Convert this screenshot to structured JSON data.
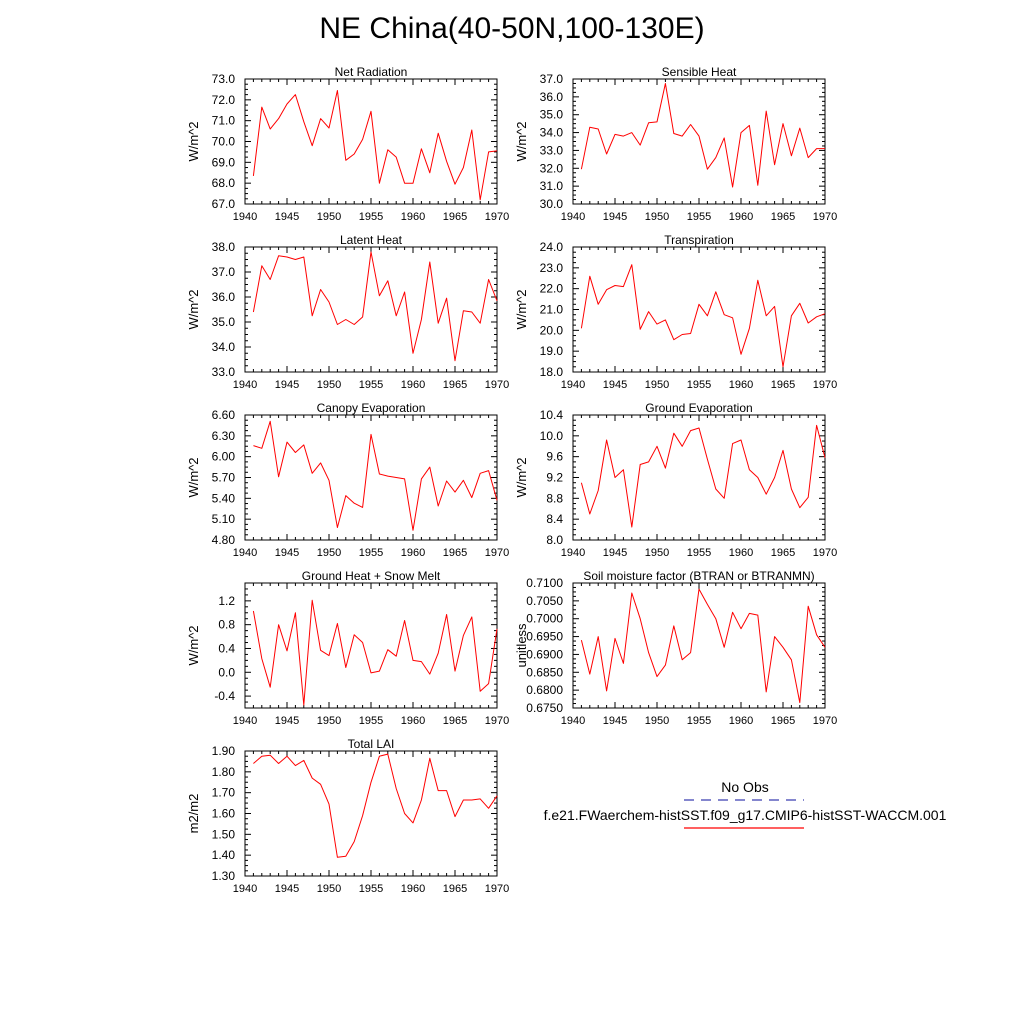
{
  "title": "NE China(40-50N,100-130E)",
  "legend": {
    "obs_label": "No Obs",
    "obs_color": "#3b3fb0",
    "model_label": "f.e21.FWaerchem-histSST.f09_g17.CMIP6-histSST-WACCM.001",
    "model_color": "#ff0000"
  },
  "chart_data": [
    {
      "type": "line",
      "title": "Net Radiation",
      "ylabel": "W/m^2",
      "xlim": [
        1940,
        1970
      ],
      "ylim": [
        67.0,
        73.0
      ],
      "xticks": [
        "1940",
        "1945",
        "1950",
        "1955",
        "1960",
        "1965",
        "1970"
      ],
      "yticks": [
        "67.0",
        "68.0",
        "69.0",
        "70.0",
        "71.0",
        "72.0",
        "73.0"
      ],
      "x": [
        1941,
        1942,
        1943,
        1944,
        1945,
        1946,
        1947,
        1948,
        1949,
        1950,
        1951,
        1952,
        1953,
        1954,
        1955,
        1956,
        1957,
        1958,
        1959,
        1960,
        1961,
        1962,
        1963,
        1964,
        1965,
        1966,
        1967,
        1968,
        1969,
        1970
      ],
      "series": [
        {
          "values": [
            68.35,
            71.65,
            70.6,
            71.1,
            71.8,
            72.25,
            70.95,
            69.8,
            71.1,
            70.65,
            72.45,
            69.1,
            69.4,
            70.1,
            71.45,
            68.0,
            69.6,
            69.25,
            68.0,
            68.0,
            69.65,
            68.5,
            70.4,
            69.05,
            67.95,
            68.75,
            70.55,
            67.2,
            69.5,
            69.55
          ]
        }
      ]
    },
    {
      "type": "line",
      "title": "Sensible Heat",
      "ylabel": "W/m^2",
      "xlim": [
        1940,
        1970
      ],
      "ylim": [
        30.0,
        37.0
      ],
      "xticks": [
        "1940",
        "1945",
        "1950",
        "1955",
        "1960",
        "1965",
        "1970"
      ],
      "yticks": [
        "30.0",
        "31.0",
        "32.0",
        "33.0",
        "34.0",
        "35.0",
        "36.0",
        "37.0"
      ],
      "x": [
        1941,
        1942,
        1943,
        1944,
        1945,
        1946,
        1947,
        1948,
        1949,
        1950,
        1951,
        1952,
        1953,
        1954,
        1955,
        1956,
        1957,
        1958,
        1959,
        1960,
        1961,
        1962,
        1963,
        1964,
        1965,
        1966,
        1967,
        1968,
        1969,
        1970
      ],
      "series": [
        {
          "values": [
            31.95,
            34.3,
            34.2,
            32.8,
            33.9,
            33.8,
            34.0,
            33.3,
            34.55,
            34.6,
            36.75,
            33.95,
            33.8,
            34.45,
            33.8,
            31.95,
            32.6,
            33.7,
            30.95,
            34.0,
            34.4,
            31.05,
            35.2,
            32.2,
            34.5,
            32.7,
            34.25,
            32.6,
            33.1,
            33.1
          ]
        }
      ]
    },
    {
      "type": "line",
      "title": "Latent Heat",
      "ylabel": "W/m^2",
      "xlim": [
        1940,
        1970
      ],
      "ylim": [
        33.0,
        38.0
      ],
      "xticks": [
        "1940",
        "1945",
        "1950",
        "1955",
        "1960",
        "1965",
        "1970"
      ],
      "yticks": [
        "33.0",
        "34.0",
        "35.0",
        "36.0",
        "37.0",
        "38.0"
      ],
      "x": [
        1941,
        1942,
        1943,
        1944,
        1945,
        1946,
        1947,
        1948,
        1949,
        1950,
        1951,
        1952,
        1953,
        1954,
        1955,
        1956,
        1957,
        1958,
        1959,
        1960,
        1961,
        1962,
        1963,
        1964,
        1965,
        1966,
        1967,
        1968,
        1969,
        1970
      ],
      "series": [
        {
          "values": [
            35.4,
            37.25,
            36.7,
            37.65,
            37.6,
            37.5,
            37.6,
            35.25,
            36.3,
            35.8,
            34.9,
            35.1,
            34.9,
            35.2,
            37.8,
            36.05,
            36.65,
            35.25,
            36.2,
            33.75,
            35.1,
            37.4,
            34.95,
            35.95,
            33.45,
            35.45,
            35.4,
            34.95,
            36.7,
            35.85
          ]
        }
      ]
    },
    {
      "type": "line",
      "title": "Transpiration",
      "ylabel": "W/m^2",
      "xlim": [
        1940,
        1970
      ],
      "ylim": [
        18.0,
        24.0
      ],
      "xticks": [
        "1940",
        "1945",
        "1950",
        "1955",
        "1960",
        "1965",
        "1970"
      ],
      "yticks": [
        "18.0",
        "19.0",
        "20.0",
        "21.0",
        "22.0",
        "23.0",
        "24.0"
      ],
      "x": [
        1941,
        1942,
        1943,
        1944,
        1945,
        1946,
        1947,
        1948,
        1949,
        1950,
        1951,
        1952,
        1953,
        1954,
        1955,
        1956,
        1957,
        1958,
        1959,
        1960,
        1961,
        1962,
        1963,
        1964,
        1965,
        1966,
        1967,
        1968,
        1969,
        1970
      ],
      "series": [
        {
          "values": [
            20.1,
            22.6,
            21.25,
            21.95,
            22.15,
            22.1,
            23.15,
            20.05,
            20.9,
            20.3,
            20.5,
            19.55,
            19.8,
            19.85,
            21.25,
            20.7,
            21.85,
            20.75,
            20.6,
            18.85,
            20.1,
            22.4,
            20.7,
            21.15,
            18.25,
            20.7,
            21.3,
            20.35,
            20.65,
            20.8
          ]
        }
      ]
    },
    {
      "type": "line",
      "title": "Canopy Evaporation",
      "ylabel": "W/m^2",
      "xlim": [
        1940,
        1970
      ],
      "ylim": [
        4.8,
        6.6
      ],
      "xticks": [
        "1940",
        "1945",
        "1950",
        "1955",
        "1960",
        "1965",
        "1970"
      ],
      "yticks": [
        "4.80",
        "5.10",
        "5.40",
        "5.70",
        "6.00",
        "6.30",
        "6.60"
      ],
      "x": [
        1941,
        1942,
        1943,
        1944,
        1945,
        1946,
        1947,
        1948,
        1949,
        1950,
        1951,
        1952,
        1953,
        1954,
        1955,
        1956,
        1957,
        1958,
        1959,
        1960,
        1961,
        1962,
        1963,
        1964,
        1965,
        1966,
        1967,
        1968,
        1969,
        1970
      ],
      "series": [
        {
          "values": [
            6.16,
            6.12,
            6.51,
            5.71,
            6.21,
            6.06,
            6.17,
            5.76,
            5.91,
            5.66,
            4.98,
            5.44,
            5.33,
            5.27,
            6.32,
            5.75,
            5.72,
            5.7,
            5.68,
            4.94,
            5.68,
            5.85,
            5.29,
            5.65,
            5.49,
            5.66,
            5.41,
            5.76,
            5.8,
            5.37
          ]
        }
      ]
    },
    {
      "type": "line",
      "title": "Ground Evaporation",
      "ylabel": "W/m^2",
      "xlim": [
        1940,
        1970
      ],
      "ylim": [
        8.0,
        10.4
      ],
      "xticks": [
        "1940",
        "1945",
        "1950",
        "1955",
        "1960",
        "1965",
        "1970"
      ],
      "yticks": [
        "8.0",
        "8.4",
        "8.8",
        "9.2",
        "9.6",
        "10.0",
        "10.4"
      ],
      "x": [
        1941,
        1942,
        1943,
        1944,
        1945,
        1946,
        1947,
        1948,
        1949,
        1950,
        1951,
        1952,
        1953,
        1954,
        1955,
        1956,
        1957,
        1958,
        1959,
        1960,
        1961,
        1962,
        1963,
        1964,
        1965,
        1966,
        1967,
        1968,
        1969,
        1970
      ],
      "series": [
        {
          "values": [
            9.1,
            8.5,
            8.95,
            9.92,
            9.2,
            9.35,
            8.25,
            9.45,
            9.5,
            9.8,
            9.38,
            10.05,
            9.8,
            10.1,
            10.15,
            9.55,
            8.98,
            8.8,
            9.85,
            9.92,
            9.35,
            9.2,
            8.88,
            9.2,
            9.72,
            8.98,
            8.62,
            8.82,
            10.2,
            9.58
          ]
        }
      ]
    },
    {
      "type": "line",
      "title": "Ground Heat + Snow Melt",
      "ylabel": "W/m^2",
      "xlim": [
        1940,
        1970
      ],
      "ylim": [
        -0.6,
        1.5
      ],
      "xticks": [
        "1940",
        "1945",
        "1950",
        "1955",
        "1960",
        "1965",
        "1970"
      ],
      "yticks": [
        "-0.4",
        "0.0",
        "0.4",
        "0.8",
        "1.2"
      ],
      "ytick_values": [
        -0.4,
        0.0,
        0.4,
        0.8,
        1.2
      ],
      "x": [
        1941,
        1942,
        1943,
        1944,
        1945,
        1946,
        1947,
        1948,
        1949,
        1950,
        1951,
        1952,
        1953,
        1954,
        1955,
        1956,
        1957,
        1958,
        1959,
        1960,
        1961,
        1962,
        1963,
        1964,
        1965,
        1966,
        1967,
        1968,
        1969,
        1970
      ],
      "series": [
        {
          "values": [
            1.03,
            0.23,
            -0.25,
            0.8,
            0.36,
            1.0,
            -0.55,
            1.21,
            0.37,
            0.28,
            0.82,
            0.08,
            0.63,
            0.5,
            -0.01,
            0.02,
            0.38,
            0.27,
            0.87,
            0.2,
            0.18,
            -0.03,
            0.32,
            0.97,
            0.02,
            0.62,
            0.93,
            -0.32,
            -0.19,
            0.73
          ]
        }
      ]
    },
    {
      "type": "line",
      "title": "Soil moisture factor (BTRAN or BTRANMN)",
      "ylabel": "unitless",
      "xlim": [
        1940,
        1970
      ],
      "ylim": [
        0.675,
        0.71
      ],
      "xticks": [
        "1940",
        "1945",
        "1950",
        "1955",
        "1960",
        "1965",
        "1970"
      ],
      "yticks": [
        "0.6750",
        "0.6800",
        "0.6850",
        "0.6900",
        "0.6950",
        "0.7000",
        "0.7050",
        "0.7100"
      ],
      "x": [
        1941,
        1942,
        1943,
        1944,
        1945,
        1946,
        1947,
        1948,
        1949,
        1950,
        1951,
        1952,
        1953,
        1954,
        1955,
        1956,
        1957,
        1958,
        1959,
        1960,
        1961,
        1962,
        1963,
        1964,
        1965,
        1966,
        1967,
        1968,
        1969,
        1970
      ],
      "series": [
        {
          "values": [
            0.694,
            0.6845,
            0.695,
            0.6798,
            0.6945,
            0.6875,
            0.7072,
            0.7,
            0.6905,
            0.6838,
            0.687,
            0.698,
            0.6885,
            0.6905,
            0.7083,
            0.704,
            0.7,
            0.692,
            0.7018,
            0.6972,
            0.7015,
            0.701,
            0.6795,
            0.695,
            0.692,
            0.6885,
            0.6765,
            0.7035,
            0.6955,
            0.692
          ]
        }
      ]
    },
    {
      "type": "line",
      "title": "Total LAI",
      "ylabel": "m2/m2",
      "xlim": [
        1940,
        1970
      ],
      "ylim": [
        1.3,
        1.9
      ],
      "xticks": [
        "1940",
        "1945",
        "1950",
        "1955",
        "1960",
        "1965",
        "1970"
      ],
      "yticks": [
        "1.30",
        "1.40",
        "1.50",
        "1.60",
        "1.70",
        "1.80",
        "1.90"
      ],
      "x": [
        1941,
        1942,
        1943,
        1944,
        1945,
        1946,
        1947,
        1948,
        1949,
        1950,
        1951,
        1952,
        1953,
        1954,
        1955,
        1956,
        1957,
        1958,
        1959,
        1960,
        1961,
        1962,
        1963,
        1964,
        1965,
        1966,
        1967,
        1968,
        1969,
        1970
      ],
      "series": [
        {
          "values": [
            1.84,
            1.875,
            1.88,
            1.84,
            1.875,
            1.83,
            1.855,
            1.77,
            1.74,
            1.645,
            1.39,
            1.395,
            1.465,
            1.59,
            1.75,
            1.875,
            1.885,
            1.72,
            1.6,
            1.555,
            1.665,
            1.865,
            1.71,
            1.71,
            1.585,
            1.665,
            1.665,
            1.67,
            1.625,
            1.685
          ]
        }
      ]
    }
  ]
}
